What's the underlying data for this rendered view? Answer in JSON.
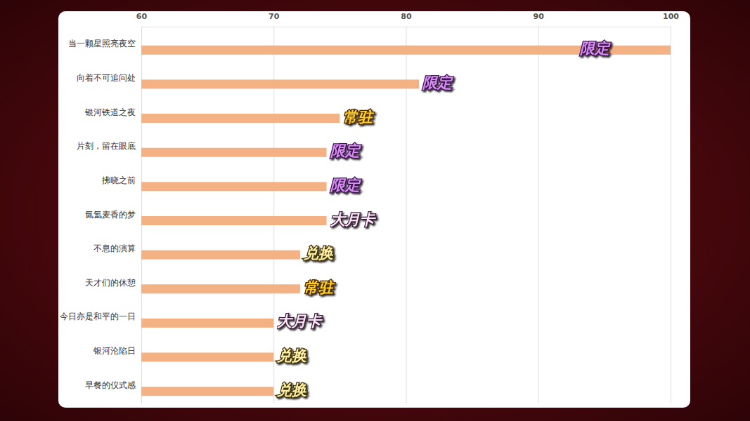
{
  "chart_data": {
    "type": "bar",
    "orientation": "horizontal",
    "categories": [
      "当一颗星照亮夜空",
      "向着不可追问处",
      "银河铁道之夜",
      "片刻，留在眼底",
      "拂晓之前",
      "氤氲麦香的梦",
      "不息的演算",
      "天才们的休憩",
      "今日亦是和平的一日",
      "银河沦陷日",
      "早餐的仪式感"
    ],
    "values": [
      100,
      81,
      75,
      74,
      74,
      74,
      72,
      72,
      70,
      70,
      70
    ],
    "annotations": [
      "限定",
      "限定",
      "常驻",
      "限定",
      "限定",
      "大月卡",
      "兑换",
      "常驻",
      "大月卡",
      "兑换",
      "兑换"
    ],
    "color": "#f4b183",
    "xlim": [
      60,
      100
    ],
    "xticks": [
      60,
      70,
      80,
      90,
      100
    ],
    "grid": true
  }
}
